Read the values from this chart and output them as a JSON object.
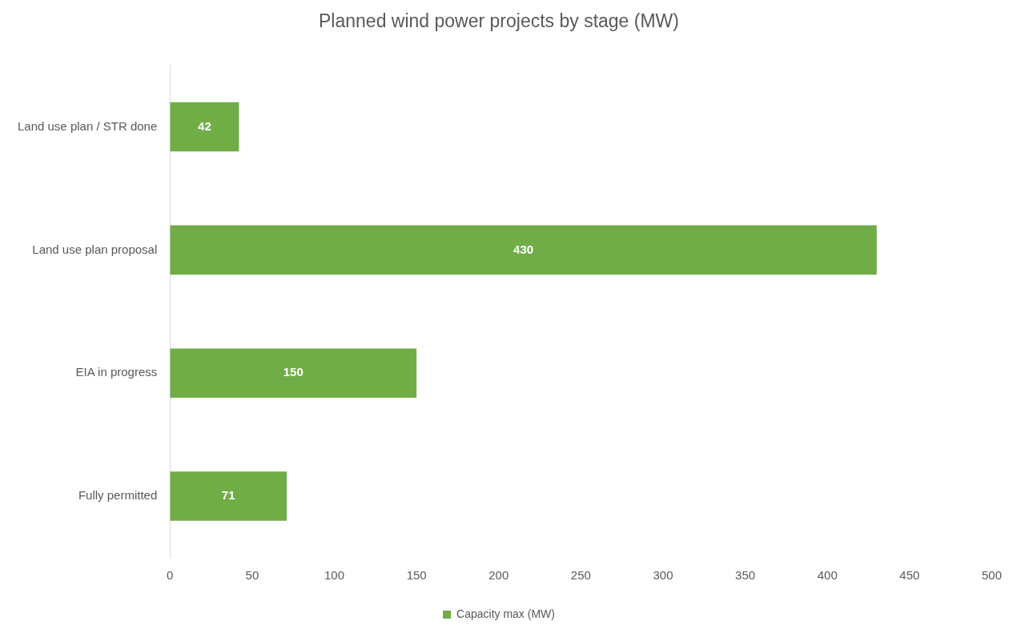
{
  "chart_data": {
    "type": "bar",
    "orientation": "horizontal",
    "title": "Planned wind power projects by stage (MW)",
    "categories": [
      "Land use plan / STR done",
      "Land use plan proposal",
      "EIA in progress",
      "Fully permitted"
    ],
    "series": [
      {
        "name": "Capacity max (MW)",
        "color": "#70ad47",
        "values": [
          42,
          430,
          150,
          71
        ]
      }
    ],
    "xlim": [
      0,
      500
    ],
    "xticks": [
      0,
      50,
      100,
      150,
      200,
      250,
      300,
      350,
      400,
      450,
      500
    ],
    "data_labels": true,
    "legend": "bottom",
    "grid": false
  }
}
